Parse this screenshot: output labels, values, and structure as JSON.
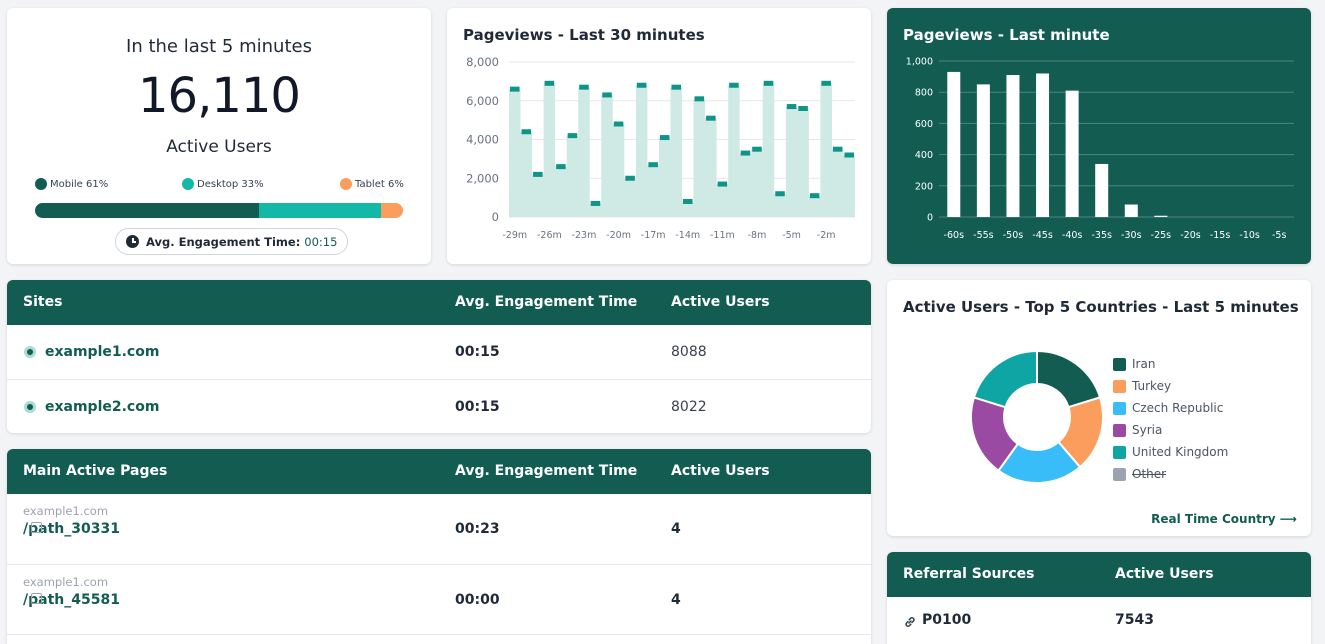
{
  "active_card": {
    "heading": "In the last 5 minutes",
    "count": "16,110",
    "label": "Active Users",
    "devices": [
      {
        "label": "Mobile 61%",
        "percent": 61,
        "color": "#125c52"
      },
      {
        "label": "Desktop 33%",
        "percent": 33,
        "color": "#14b8a6"
      },
      {
        "label": "Tablet 6%",
        "percent": 6,
        "color": "#fb9d5c"
      }
    ],
    "engagement_label": "Avg. Engagement Time:",
    "engagement_value": "00:15"
  },
  "pv30": {
    "title": "Pageviews - Last 30 minutes",
    "chart_data": {
      "type": "bar",
      "title": "Pageviews - Last 30 minutes",
      "ylim": [
        0,
        8000
      ],
      "yticks": [
        "0",
        "2,000",
        "4,000",
        "6,000",
        "8,000"
      ],
      "xticks": [
        "-29m",
        "-26m",
        "-23m",
        "-20m",
        "-17m",
        "-14m",
        "-11m",
        "-8m",
        "-5m",
        "-2m"
      ],
      "values": [
        6600,
        4400,
        2200,
        6900,
        2600,
        4200,
        6700,
        700,
        6300,
        4800,
        2000,
        6800,
        2700,
        4100,
        6700,
        800,
        6100,
        5100,
        1700,
        6800,
        3300,
        3500,
        6900,
        1200,
        5700,
        5600,
        1100,
        6900,
        3500,
        3200
      ],
      "grid": true,
      "bar_color": "#0f9488",
      "fill_color": "#cfe9e4"
    }
  },
  "pv1": {
    "title": "Pageviews - Last minute",
    "chart_data": {
      "type": "bar",
      "title": "Pageviews - Last minute",
      "ylim": [
        0,
        1000
      ],
      "yticks": [
        "0",
        "200",
        "400",
        "600",
        "800",
        "1,000"
      ],
      "categories": [
        "-60s",
        "-55s",
        "-50s",
        "-45s",
        "-40s",
        "-35s",
        "-30s",
        "-25s",
        "-20s",
        "-15s",
        "-10s",
        "-5s"
      ],
      "values": [
        930,
        850,
        910,
        920,
        810,
        340,
        80,
        8,
        0,
        0,
        0,
        0
      ],
      "grid": true,
      "bar_color": "#ffffff"
    }
  },
  "sites": {
    "headers": [
      "Sites",
      "Avg. Engagement Time",
      "Active Users"
    ],
    "rows": [
      {
        "site": "example1.com",
        "time": "00:15",
        "users": "8088"
      },
      {
        "site": "example2.com",
        "time": "00:15",
        "users": "8022"
      }
    ]
  },
  "pages": {
    "headers": [
      "Main Active Pages",
      "Avg. Engagement Time",
      "Active Users"
    ],
    "rows": [
      {
        "host": "example1.com",
        "path": "/path_30331",
        "time": "00:23",
        "users": "4"
      },
      {
        "host": "example1.com",
        "path": "/path_45581",
        "time": "00:00",
        "users": "4"
      }
    ]
  },
  "countries": {
    "title": "Active Users - Top 5 Countries - Last 5 minutes",
    "link": "Real Time Country ⟶",
    "chart_data": {
      "type": "pie",
      "labels": [
        "Iran",
        "Turkey",
        "Czech Republic",
        "Syria",
        "United Kingdom",
        "Other"
      ],
      "values": [
        20.2,
        18.5,
        21.2,
        19.9,
        20.2,
        0
      ],
      "colors": [
        "#125c52",
        "#fb9d5c",
        "#38bdf8",
        "#9b4aa3",
        "#0ea5a4",
        "#9ca3af"
      ],
      "hidden": [
        "Other"
      ]
    }
  },
  "referrals": {
    "headers": [
      "Referral Sources",
      "Active Users"
    ],
    "rows": [
      {
        "source": "P0100",
        "users": "7543"
      }
    ]
  }
}
